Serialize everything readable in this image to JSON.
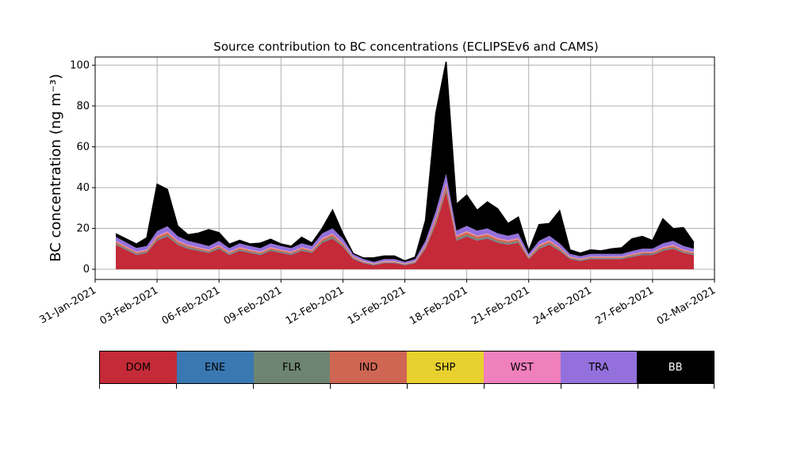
{
  "chart_data": {
    "type": "area",
    "stacked": true,
    "title": "Source contribution to BC concentrations (ECLIPSEv6 and CAMS)",
    "ylabel": "BC concentration (ng m⁻³)",
    "xlabel": "",
    "ylim": [
      -5,
      104
    ],
    "xlim": [
      "2021-01-31",
      "2021-03-02"
    ],
    "grid": true,
    "x_ticks": [
      "31-Jan-2021",
      "03-Feb-2021",
      "06-Feb-2021",
      "09-Feb-2021",
      "12-Feb-2021",
      "15-Feb-2021",
      "18-Feb-2021",
      "21-Feb-2021",
      "24-Feb-2021",
      "27-Feb-2021",
      "02-Mar-2021"
    ],
    "y_ticks": [
      0,
      20,
      40,
      60,
      80,
      100
    ],
    "x": [
      "2021-02-01",
      "2021-02-02",
      "2021-02-02T12:00",
      "2021-02-03",
      "2021-02-03T12:00",
      "2021-02-04",
      "2021-02-04T12:00",
      "2021-02-05",
      "2021-02-05T12:00",
      "2021-02-06",
      "2021-02-06T12:00",
      "2021-02-07",
      "2021-02-07T12:00",
      "2021-02-08",
      "2021-02-08T12:00",
      "2021-02-09",
      "2021-02-09T12:00",
      "2021-02-10",
      "2021-02-10T12:00",
      "2021-02-11",
      "2021-02-11T12:00",
      "2021-02-12",
      "2021-02-12T12:00",
      "2021-02-13",
      "2021-02-13T12:00",
      "2021-02-14",
      "2021-02-14T12:00",
      "2021-02-15",
      "2021-02-15T12:00",
      "2021-02-16",
      "2021-02-16T12:00",
      "2021-02-17",
      "2021-02-17T12:00",
      "2021-02-18",
      "2021-02-18T12:00",
      "2021-02-19",
      "2021-02-19T12:00",
      "2021-02-20",
      "2021-02-20T12:00",
      "2021-02-21",
      "2021-02-21T12:00",
      "2021-02-22",
      "2021-02-22T12:00",
      "2021-02-23",
      "2021-02-23T12:00",
      "2021-02-24",
      "2021-02-24T12:00",
      "2021-02-25",
      "2021-02-25T12:00",
      "2021-02-26",
      "2021-02-26T12:00",
      "2021-02-27",
      "2021-02-27T12:00",
      "2021-02-28",
      "2021-02-28T12:00",
      "2021-03-01"
    ],
    "series": [
      {
        "name": "DOM",
        "color": "#c42a37",
        "values": [
          12,
          7,
          8,
          14,
          16,
          12,
          10,
          9,
          8,
          10,
          7,
          9,
          8,
          7,
          9,
          8,
          7,
          9,
          8,
          13,
          15,
          11,
          5,
          3,
          2,
          3,
          3,
          2,
          3,
          10,
          22,
          38,
          14,
          16,
          14,
          15,
          13,
          12,
          13,
          5,
          10,
          12,
          9,
          5,
          4,
          5,
          5,
          5,
          5,
          6,
          7,
          7,
          9,
          10,
          8,
          7
        ]
      },
      {
        "name": "ENE",
        "color": "#3a78b2",
        "values": [
          0.2,
          0.2,
          0.2,
          0.2,
          0.2,
          0.2,
          0.2,
          0.2,
          0.2,
          0.2,
          0.2,
          0.2,
          0.2,
          0.2,
          0.2,
          0.2,
          0.2,
          0.2,
          0.2,
          0.2,
          0.2,
          0.2,
          0.2,
          0.2,
          0.2,
          0.2,
          0.2,
          0.2,
          0.2,
          0.2,
          0.2,
          0.2,
          0.2,
          0.2,
          0.2,
          0.2,
          0.2,
          0.2,
          0.2,
          0.2,
          0.2,
          0.2,
          0.2,
          0.2,
          0.2,
          0.2,
          0.2,
          0.2,
          0.2,
          0.2,
          0.2,
          0.2,
          0.2,
          0.2,
          0.2,
          0.2
        ]
      },
      {
        "name": "FLR",
        "color": "#6e8472",
        "values": [
          0.5,
          0.4,
          0.4,
          0.6,
          0.7,
          0.5,
          0.5,
          0.5,
          0.4,
          0.5,
          0.4,
          0.5,
          0.4,
          0.4,
          0.5,
          0.4,
          0.4,
          0.5,
          0.4,
          0.6,
          0.7,
          0.5,
          0.3,
          0.2,
          0.2,
          0.2,
          0.2,
          0.2,
          0.2,
          0.5,
          0.9,
          1.2,
          0.7,
          0.8,
          0.7,
          0.7,
          0.6,
          0.6,
          0.6,
          0.3,
          0.5,
          0.6,
          0.5,
          0.3,
          0.3,
          0.3,
          0.3,
          0.3,
          0.3,
          0.4,
          0.4,
          0.4,
          0.5,
          0.5,
          0.4,
          0.4
        ]
      },
      {
        "name": "IND",
        "color": "#cf6553",
        "values": [
          0.8,
          0.6,
          0.6,
          1.0,
          1.1,
          0.9,
          0.8,
          0.7,
          0.6,
          0.8,
          0.6,
          0.7,
          0.6,
          0.6,
          0.7,
          0.6,
          0.6,
          0.7,
          0.6,
          1.0,
          1.1,
          0.8,
          0.4,
          0.3,
          0.2,
          0.3,
          0.3,
          0.2,
          0.3,
          0.8,
          1.5,
          2.0,
          1.1,
          1.2,
          1.1,
          1.1,
          1.0,
          0.9,
          1.0,
          0.4,
          0.8,
          0.9,
          0.7,
          0.4,
          0.4,
          0.4,
          0.4,
          0.4,
          0.4,
          0.5,
          0.6,
          0.6,
          0.7,
          0.8,
          0.6,
          0.6
        ]
      },
      {
        "name": "SHP",
        "color": "#e8d02f",
        "values": [
          0.1,
          0.1,
          0.1,
          0.1,
          0.1,
          0.1,
          0.1,
          0.1,
          0.1,
          0.1,
          0.1,
          0.1,
          0.1,
          0.1,
          0.1,
          0.1,
          0.1,
          0.1,
          0.1,
          0.1,
          0.1,
          0.1,
          0.1,
          0.1,
          0.1,
          0.1,
          0.1,
          0.1,
          0.1,
          0.1,
          0.1,
          0.1,
          0.1,
          0.1,
          0.1,
          0.1,
          0.1,
          0.1,
          0.1,
          0.1,
          0.1,
          0.1,
          0.1,
          0.1,
          0.1,
          0.1,
          0.1,
          0.1,
          0.1,
          0.1,
          0.1,
          0.1,
          0.1,
          0.1,
          0.1,
          0.1
        ]
      },
      {
        "name": "WST",
        "color": "#f07fbd",
        "values": [
          0.3,
          0.3,
          0.3,
          0.4,
          0.4,
          0.3,
          0.3,
          0.3,
          0.3,
          0.3,
          0.3,
          0.3,
          0.3,
          0.3,
          0.3,
          0.3,
          0.3,
          0.3,
          0.3,
          0.4,
          0.4,
          0.3,
          0.2,
          0.2,
          0.1,
          0.2,
          0.2,
          0.1,
          0.2,
          0.3,
          0.5,
          0.7,
          0.4,
          0.4,
          0.4,
          0.4,
          0.4,
          0.4,
          0.4,
          0.2,
          0.3,
          0.4,
          0.3,
          0.2,
          0.2,
          0.2,
          0.2,
          0.2,
          0.2,
          0.2,
          0.2,
          0.2,
          0.3,
          0.3,
          0.3,
          0.2
        ]
      },
      {
        "name": "TRA",
        "color": "#9370db",
        "values": [
          2.0,
          1.8,
          1.8,
          2.4,
          2.6,
          2.2,
          2.0,
          1.9,
          1.8,
          2.0,
          1.7,
          1.9,
          1.8,
          1.7,
          1.9,
          1.8,
          1.7,
          1.9,
          1.8,
          2.3,
          2.5,
          2.1,
          1.2,
          1.0,
          0.8,
          1.0,
          1.0,
          0.8,
          1.0,
          2.0,
          3.2,
          4.5,
          2.4,
          2.6,
          2.4,
          2.5,
          2.3,
          2.2,
          2.3,
          1.3,
          2.0,
          2.2,
          1.9,
          1.3,
          1.2,
          1.3,
          1.3,
          1.3,
          1.3,
          1.5,
          1.6,
          1.6,
          1.9,
          2.0,
          1.8,
          1.6
        ]
      },
      {
        "name": "BB",
        "color": "#000000",
        "values": [
          1.5,
          2.0,
          4.0,
          23.0,
          18.0,
          5.0,
          3.0,
          5.0,
          8.0,
          4.0,
          2.0,
          1.5,
          1.0,
          2.5,
          2.0,
          1.0,
          1.0,
          3.0,
          1.5,
          2.5,
          9.0,
          2.5,
          0.3,
          0.5,
          2.0,
          1.5,
          1.5,
          0.5,
          1.0,
          10.0,
          48.0,
          55.0,
          13.0,
          15.0,
          10.0,
          13.0,
          12.0,
          6.0,
          8.0,
          1.5,
          8.0,
          6.0,
          16.0,
          2.0,
          1.5,
          2.0,
          1.5,
          2.5,
          3.0,
          6.0,
          6.0,
          4.0,
          12.0,
          6.0,
          9.0,
          3.0
        ]
      }
    ]
  },
  "legend": {
    "items": [
      {
        "label": "DOM",
        "color": "#c42a37",
        "text_color": "#000000"
      },
      {
        "label": "ENE",
        "color": "#3a78b2",
        "text_color": "#000000"
      },
      {
        "label": "FLR",
        "color": "#6e8472",
        "text_color": "#000000"
      },
      {
        "label": "IND",
        "color": "#cf6553",
        "text_color": "#000000"
      },
      {
        "label": "SHP",
        "color": "#e8d02f",
        "text_color": "#000000"
      },
      {
        "label": "WST",
        "color": "#f07fbd",
        "text_color": "#000000"
      },
      {
        "label": "TRA",
        "color": "#9370db",
        "text_color": "#000000"
      },
      {
        "label": "BB",
        "color": "#000000",
        "text_color": "#ffffff"
      }
    ]
  }
}
